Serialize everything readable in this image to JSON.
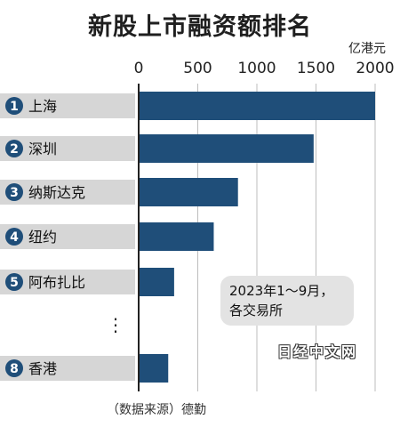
{
  "title": "新股上市融资额排名",
  "unit": "亿港元",
  "note": {
    "line1": "2023年1～9月，",
    "line2": "各交易所"
  },
  "watermark": "日经中文网",
  "source": "（数据来源）德勤",
  "colors": {
    "bar": "#1f4e79",
    "badge": "#1f4e79",
    "row_band": "#d6d6d6",
    "grid": "#bdbdbd"
  },
  "chart_data": {
    "type": "bar",
    "orientation": "horizontal",
    "title": "新股上市融资额排名",
    "unit": "亿港元",
    "xlim": [
      0,
      2000
    ],
    "x_ticks": [
      0,
      500,
      1000,
      1500,
      2000
    ],
    "grid": true,
    "rows": [
      {
        "rank": "1",
        "label": "上海",
        "value": 2000
      },
      {
        "rank": "2",
        "label": "深圳",
        "value": 1480
      },
      {
        "rank": "3",
        "label": "纳斯达克",
        "value": 840
      },
      {
        "rank": "4",
        "label": "纽约",
        "value": 635
      },
      {
        "rank": "5",
        "label": "阿布扎比",
        "value": 300
      },
      {
        "rank": "8",
        "label": "香港",
        "value": 250
      }
    ],
    "ellipsis": "⋮"
  }
}
